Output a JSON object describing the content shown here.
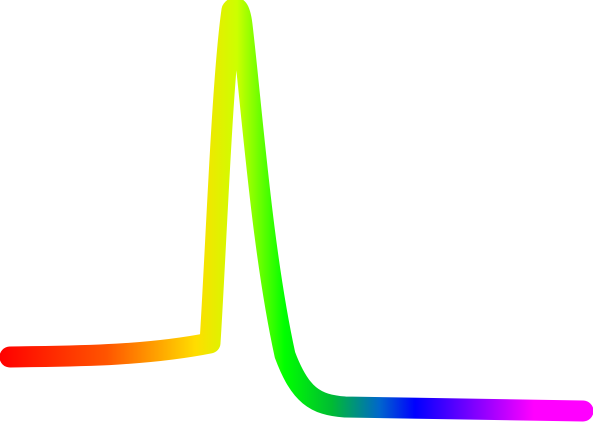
{
  "drawing": {
    "description_shape": "peak-stroke",
    "gradient_colors": [
      "#ff0000",
      "#ff8c00",
      "#ffff00",
      "#00ff00",
      "#0000ff",
      "#ff00ff"
    ]
  }
}
